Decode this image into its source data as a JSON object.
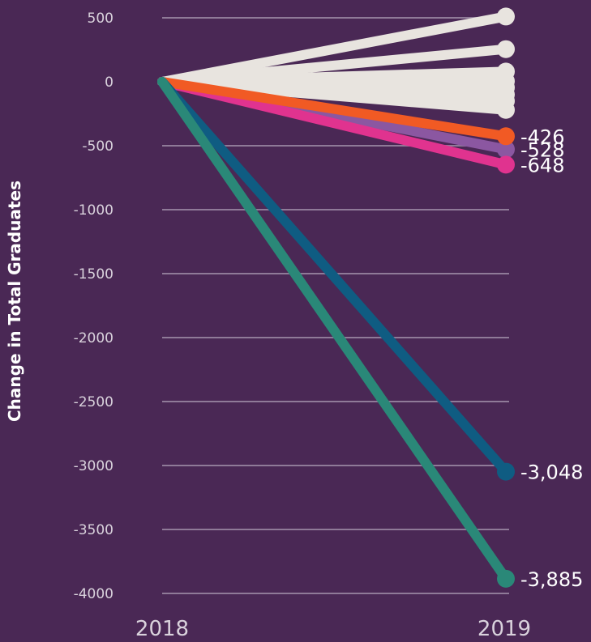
{
  "chart_data": {
    "type": "line",
    "xlabel": "",
    "ylabel": "Change in Total Graduates",
    "x": [
      "2018",
      "2019"
    ],
    "ylim": [
      -4000,
      500
    ],
    "yticks": [
      "500",
      "0",
      "-500",
      "-1000",
      "-1500",
      "-2000",
      "-2500",
      "-3000",
      "-3500",
      "-4000"
    ],
    "ytick_values": [
      500,
      0,
      -500,
      -1000,
      -1500,
      -2000,
      -2500,
      -3000,
      -3500,
      -4000
    ],
    "grid": true,
    "legend": "none",
    "series": [
      {
        "values": [
          0,
          510
        ],
        "color": "#e8e4df",
        "label": ""
      },
      {
        "values": [
          0,
          255
        ],
        "color": "#e8e4df",
        "label": ""
      },
      {
        "values": [
          0,
          80
        ],
        "color": "#e8e4df",
        "label": ""
      },
      {
        "values": [
          0,
          5
        ],
        "color": "#e8e4df",
        "label": ""
      },
      {
        "values": [
          0,
          -45
        ],
        "color": "#e8e4df",
        "label": ""
      },
      {
        "values": [
          0,
          -100
        ],
        "color": "#e8e4df",
        "label": ""
      },
      {
        "values": [
          0,
          -150
        ],
        "color": "#e8e4df",
        "label": ""
      },
      {
        "values": [
          0,
          -220
        ],
        "color": "#e8e4df",
        "label": ""
      },
      {
        "values": [
          0,
          -528
        ],
        "color": "#8b57a1",
        "label": "-528"
      },
      {
        "values": [
          0,
          -648
        ],
        "color": "#e0338f",
        "label": "-648"
      },
      {
        "values": [
          0,
          -426
        ],
        "color": "#f15a24",
        "label": "-426"
      },
      {
        "values": [
          0,
          -3048
        ],
        "color": "#0f5c82",
        "label": "-3,048"
      },
      {
        "values": [
          0,
          -3885
        ],
        "color": "#2a8878",
        "label": "-3,885"
      }
    ]
  }
}
